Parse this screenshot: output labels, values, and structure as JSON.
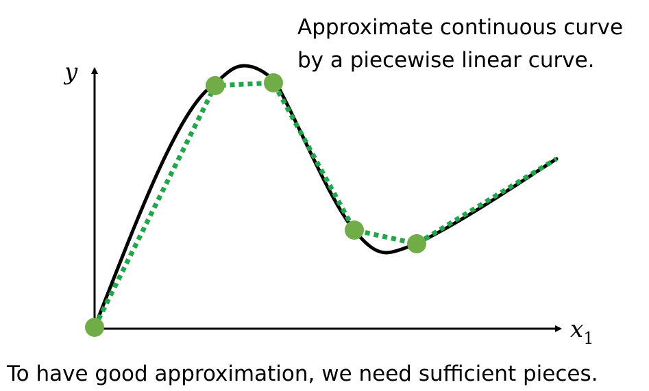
{
  "text": {
    "caption_line1": "Approximate continuous curve",
    "caption_line2": "by a piecewise linear curve.",
    "footer": "To have good approximation, we need sufficient pieces."
  },
  "axes": {
    "y_label": "y",
    "x_label": "x",
    "x_subscript": "1"
  },
  "colors": {
    "curve": "#000000",
    "piecewise_line": "#1fa84a",
    "point_fill": "#70ad47",
    "axis": "#000000"
  }
}
